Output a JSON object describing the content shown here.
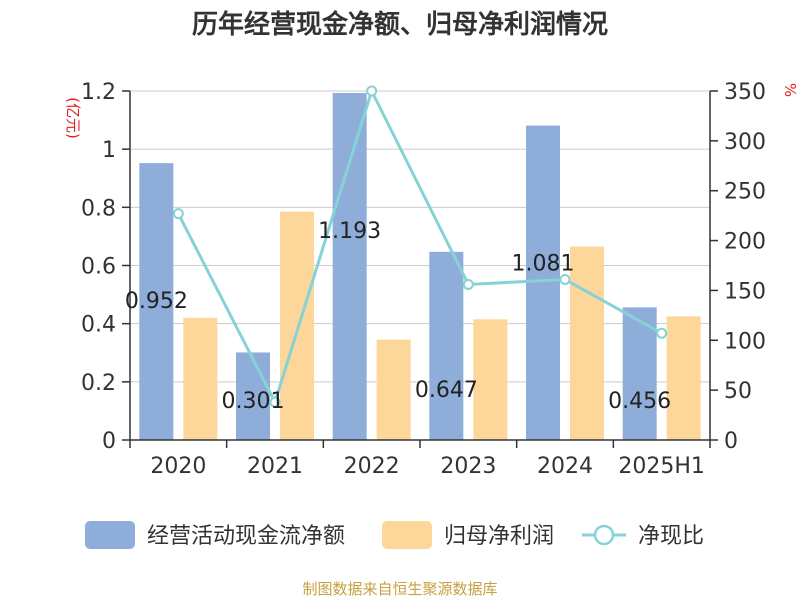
{
  "chart_data": {
    "type": "bar",
    "title": "历年经营现金净额、归母净利润情况",
    "categories": [
      "2020",
      "2021",
      "2022",
      "2023",
      "2024",
      "2025H1"
    ],
    "series": [
      {
        "name": "经营活动现金流净额",
        "values": [
          0.952,
          0.301,
          1.193,
          0.647,
          1.081,
          0.456
        ],
        "color": "#8eadd9",
        "axis": "left",
        "type": "bar"
      },
      {
        "name": "归母净利润",
        "values": [
          0.42,
          0.785,
          0.345,
          0.415,
          0.665,
          0.425
        ],
        "color": "#fdd699",
        "axis": "left",
        "type": "bar"
      },
      {
        "name": "净现比",
        "values": [
          227,
          38,
          350,
          156,
          161,
          107
        ],
        "color": "#86d2d6",
        "axis": "right",
        "type": "line"
      }
    ],
    "data_labels": [
      "0.952",
      "0.301",
      "1.193",
      "0.647",
      "1.081",
      "0.456"
    ],
    "y_left": {
      "unit": "(亿元)",
      "ylim": [
        0,
        1.2
      ],
      "ticks": [
        "0",
        "0.2",
        "0.4",
        "0.6",
        "0.8",
        "1",
        "1.2"
      ]
    },
    "y_right": {
      "unit": "%",
      "ylim": [
        0,
        350
      ],
      "ticks": [
        "0",
        "50",
        "100",
        "150",
        "200",
        "250",
        "300",
        "350"
      ]
    },
    "grid": true,
    "legend": "bottom",
    "source": "制图数据来自恒生聚源数据库"
  }
}
